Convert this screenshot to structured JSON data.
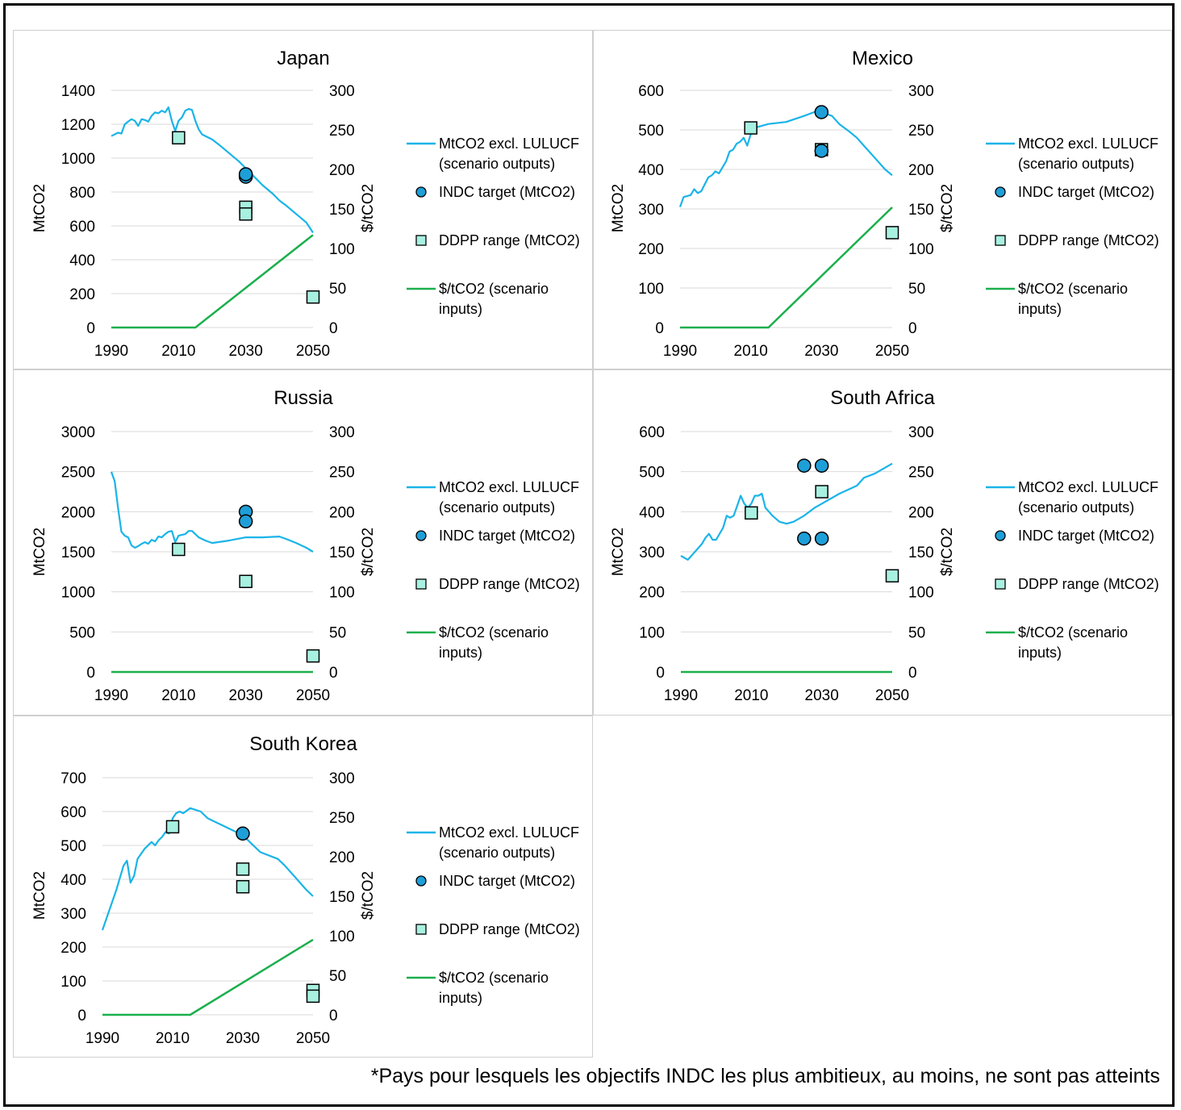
{
  "footnote": "*Pays pour lesquels les objectifs INDC les plus ambitieux, au moins, ne sont pas atteints",
  "colors": {
    "emissions": "#1AB4E8",
    "price": "#1AAF4C",
    "indc_fill": "#1E9FD8",
    "ddpp_fill": "#A8F0E0",
    "grid": "#D9D9D9"
  },
  "legend": {
    "emissions": [
      "MtCO2 excl. LULUCF",
      "(scenario outputs)"
    ],
    "indc": "INDC target (MtCO2)",
    "ddpp": "DDPP range (MtCO2)",
    "price": [
      "$/tCO2 (scenario",
      "inputs)"
    ]
  },
  "chart_data": [
    {
      "type": "line",
      "title": "Japan",
      "ylabel": "MtCO2",
      "y2label": "$/tCO2",
      "ylim": [
        0,
        1400
      ],
      "yticks": [
        0,
        200,
        400,
        600,
        800,
        1000,
        1200,
        1400
      ],
      "y2lim": [
        0,
        300
      ],
      "y2ticks": [
        0,
        50,
        100,
        150,
        200,
        250,
        300
      ],
      "xlim": [
        1990,
        2050
      ],
      "xticks": [
        1990,
        2010,
        2030,
        2050
      ],
      "series": [
        {
          "name": "MtCO2 excl. LULUCF (scenario outputs)",
          "axis": "left",
          "x": [
            1990,
            1992,
            1993,
            1994,
            1995,
            1996,
            1997,
            1998,
            1999,
            2000,
            2001,
            2002,
            2003,
            2004,
            2005,
            2006,
            2007,
            2008,
            2009,
            2010,
            2011,
            2012,
            2013,
            2014,
            2015,
            2016,
            2017,
            2020,
            2022,
            2025,
            2028,
            2030,
            2033,
            2035,
            2038,
            2040,
            2042,
            2045,
            2048,
            2050
          ],
          "y": [
            1130,
            1150,
            1145,
            1200,
            1215,
            1230,
            1220,
            1190,
            1230,
            1225,
            1215,
            1250,
            1270,
            1265,
            1280,
            1270,
            1300,
            1220,
            1160,
            1220,
            1240,
            1280,
            1290,
            1285,
            1220,
            1170,
            1140,
            1110,
            1080,
            1030,
            980,
            940,
            880,
            840,
            790,
            750,
            720,
            670,
            620,
            560
          ]
        },
        {
          "name": "INDC target (MtCO2)",
          "axis": "left",
          "marker": "circle",
          "x": [
            2030,
            2030
          ],
          "y": [
            890,
            905
          ]
        },
        {
          "name": "DDPP range (MtCO2)",
          "axis": "left",
          "marker": "square",
          "x": [
            2010,
            2030,
            2030,
            2050
          ],
          "y": [
            1120,
            710,
            670,
            180
          ]
        },
        {
          "name": "$/tCO2 (scenario inputs)",
          "axis": "right",
          "x": [
            1990,
            2015,
            2050
          ],
          "y": [
            0,
            0,
            117
          ]
        }
      ]
    },
    {
      "type": "line",
      "title": "Mexico",
      "ylabel": "MtCO2",
      "y2label": "$/tCO2",
      "ylim": [
        0,
        600
      ],
      "yticks": [
        0,
        100,
        200,
        300,
        400,
        500,
        600
      ],
      "y2lim": [
        0,
        300
      ],
      "y2ticks": [
        0,
        50,
        100,
        150,
        200,
        250,
        300
      ],
      "xlim": [
        1990,
        2050
      ],
      "xticks": [
        1990,
        2010,
        2030,
        2050
      ],
      "series": [
        {
          "name": "MtCO2 excl. LULUCF (scenario outputs)",
          "axis": "left",
          "x": [
            1990,
            1991,
            1993,
            1994,
            1995,
            1996,
            1998,
            1999,
            2000,
            2001,
            2003,
            2004,
            2005,
            2006,
            2007,
            2008,
            2009,
            2010,
            2011,
            2015,
            2020,
            2025,
            2028,
            2030,
            2033,
            2035,
            2038,
            2040,
            2042,
            2045,
            2048,
            2050
          ],
          "y": [
            305,
            330,
            335,
            350,
            340,
            345,
            380,
            385,
            395,
            390,
            420,
            445,
            450,
            465,
            470,
            480,
            460,
            490,
            505,
            515,
            520,
            535,
            545,
            545,
            535,
            515,
            495,
            480,
            460,
            430,
            400,
            385
          ]
        },
        {
          "name": "INDC target (MtCO2)",
          "axis": "left",
          "marker": "circle",
          "x": [
            2030,
            2030
          ],
          "y": [
            545,
            447
          ]
        },
        {
          "name": "DDPP range (MtCO2)",
          "axis": "left",
          "marker": "square",
          "x": [
            2010,
            2030,
            2050
          ],
          "y": [
            505,
            450,
            240
          ]
        },
        {
          "name": "$/tCO2 (scenario inputs)",
          "axis": "right",
          "x": [
            1990,
            2015,
            2050
          ],
          "y": [
            0,
            0,
            152
          ]
        }
      ]
    },
    {
      "type": "line",
      "title": "Russia",
      "ylabel": "MtCO2",
      "y2label": "$/tCO2",
      "ylim": [
        0,
        3000
      ],
      "yticks": [
        0,
        500,
        1000,
        1500,
        2000,
        2500,
        3000
      ],
      "y2lim": [
        0,
        300
      ],
      "y2ticks": [
        0,
        50,
        100,
        150,
        200,
        250,
        300
      ],
      "xlim": [
        1990,
        2050
      ],
      "xticks": [
        1990,
        2010,
        2030,
        2050
      ],
      "series": [
        {
          "name": "MtCO2 excl. LULUCF (scenario outputs)",
          "axis": "left",
          "x": [
            1990,
            1991,
            1992,
            1993,
            1994,
            1995,
            1996,
            1997,
            1998,
            1999,
            2000,
            2001,
            2002,
            2003,
            2004,
            2005,
            2006,
            2007,
            2008,
            2009,
            2010,
            2012,
            2013,
            2014,
            2016,
            2018,
            2020,
            2025,
            2030,
            2035,
            2040,
            2042,
            2045,
            2048,
            2050
          ],
          "y": [
            2500,
            2380,
            2050,
            1750,
            1700,
            1680,
            1580,
            1550,
            1570,
            1600,
            1620,
            1600,
            1650,
            1630,
            1690,
            1680,
            1720,
            1750,
            1760,
            1620,
            1700,
            1720,
            1760,
            1760,
            1680,
            1640,
            1610,
            1640,
            1680,
            1680,
            1690,
            1660,
            1610,
            1550,
            1500
          ]
        },
        {
          "name": "INDC target (MtCO2)",
          "axis": "left",
          "marker": "circle",
          "x": [
            2030,
            2030
          ],
          "y": [
            2000,
            1880
          ]
        },
        {
          "name": "DDPP range (MtCO2)",
          "axis": "left",
          "marker": "square",
          "x": [
            2010,
            2030,
            2050
          ],
          "y": [
            1530,
            1130,
            200
          ]
        },
        {
          "name": "$/tCO2 (scenario inputs)",
          "axis": "right",
          "x": [
            1990,
            2050
          ],
          "y": [
            0,
            0
          ]
        }
      ]
    },
    {
      "type": "line",
      "title": "South Africa",
      "ylabel": "MtCO2",
      "y2label": "$/tCO2",
      "ylim": [
        0,
        600
      ],
      "yticks": [
        0,
        100,
        200,
        300,
        400,
        500,
        600
      ],
      "y2lim": [
        0,
        300
      ],
      "y2ticks": [
        0,
        50,
        100,
        150,
        200,
        250,
        300
      ],
      "xlim": [
        1990,
        2050
      ],
      "xticks": [
        1990,
        2010,
        2030,
        2050
      ],
      "series": [
        {
          "name": "MtCO2 excl. LULUCF (scenario outputs)",
          "axis": "left",
          "x": [
            1990,
            1992,
            1994,
            1996,
            1997,
            1998,
            1999,
            2000,
            2002,
            2003,
            2004,
            2005,
            2006,
            2007,
            2008,
            2009,
            2010,
            2011,
            2012,
            2013,
            2014,
            2015,
            2016,
            2018,
            2020,
            2022,
            2025,
            2028,
            2030,
            2035,
            2040,
            2042,
            2045,
            2048,
            2050
          ],
          "y": [
            290,
            280,
            300,
            320,
            335,
            345,
            330,
            330,
            360,
            390,
            385,
            390,
            415,
            440,
            420,
            410,
            420,
            440,
            440,
            445,
            410,
            400,
            390,
            375,
            370,
            375,
            390,
            410,
            420,
            445,
            465,
            485,
            495,
            510,
            520
          ]
        },
        {
          "name": "INDC target (MtCO2)",
          "axis": "left",
          "marker": "circle",
          "x": [
            2025,
            2030,
            2025,
            2030
          ],
          "y": [
            515,
            515,
            333,
            333
          ]
        },
        {
          "name": "DDPP range (MtCO2)",
          "axis": "left",
          "marker": "square",
          "x": [
            2010,
            2030,
            2050
          ],
          "y": [
            397,
            450,
            240
          ]
        },
        {
          "name": "$/tCO2 (scenario inputs)",
          "axis": "right",
          "x": [
            1990,
            2050
          ],
          "y": [
            0,
            0
          ]
        }
      ]
    },
    {
      "type": "line",
      "title": "South Korea",
      "ylabel": "MtCO2",
      "y2label": "$/tCO2",
      "ylim": [
        0,
        700
      ],
      "yticks": [
        0,
        100,
        200,
        300,
        400,
        500,
        600,
        700
      ],
      "y2lim": [
        0,
        300
      ],
      "y2ticks": [
        0,
        50,
        100,
        150,
        200,
        250,
        300
      ],
      "xlim": [
        1990,
        2050
      ],
      "xticks": [
        1990,
        2010,
        2030,
        2050
      ],
      "series": [
        {
          "name": "MtCO2 excl. LULUCF (scenario outputs)",
          "axis": "left",
          "x": [
            1990,
            1992,
            1994,
            1996,
            1997,
            1998,
            1999,
            2000,
            2002,
            2004,
            2005,
            2006,
            2007,
            2008,
            2009,
            2010,
            2011,
            2012,
            2013,
            2015,
            2018,
            2020,
            2025,
            2030,
            2035,
            2040,
            2042,
            2045,
            2048,
            2050
          ],
          "y": [
            250,
            310,
            370,
            440,
            455,
            390,
            410,
            460,
            490,
            510,
            500,
            515,
            525,
            540,
            535,
            580,
            595,
            600,
            595,
            610,
            600,
            580,
            555,
            530,
            480,
            460,
            440,
            405,
            370,
            350
          ]
        },
        {
          "name": "INDC target (MtCO2)",
          "axis": "left",
          "marker": "circle",
          "x": [
            2030
          ],
          "y": [
            535
          ]
        },
        {
          "name": "DDPP range (MtCO2)",
          "axis": "left",
          "marker": "square",
          "x": [
            2010,
            2030,
            2030,
            2050,
            2050
          ],
          "y": [
            555,
            430,
            378,
            72,
            55
          ]
        },
        {
          "name": "$/tCO2 (scenario inputs)",
          "axis": "right",
          "x": [
            1990,
            2015,
            2050
          ],
          "y": [
            0,
            0,
            95
          ]
        }
      ]
    }
  ]
}
